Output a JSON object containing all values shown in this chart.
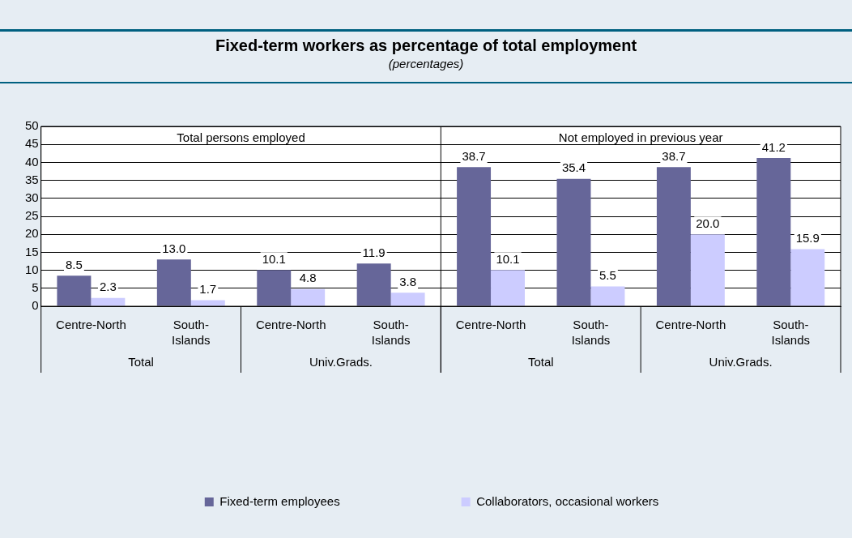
{
  "chart_data": {
    "type": "bar",
    "title": "Fixed-term workers as percentage of total employment",
    "subtitle": "(percentages)",
    "categories": [
      "Centre-North",
      "South-Islands",
      "Centre-North",
      "South-Islands",
      "Centre-North",
      "South-Islands",
      "Centre-North",
      "South-Islands"
    ],
    "series": [
      {
        "name": "Fixed-term employees",
        "color": "#666699",
        "values": [
          8.5,
          13.0,
          10.1,
          11.9,
          38.7,
          35.4,
          38.7,
          41.2
        ],
        "value_labels": [
          "8.5",
          "13.0",
          "10.1",
          "11.9",
          "38.7",
          "35.4",
          "38.7",
          "41.2"
        ]
      },
      {
        "name": "Collaborators, occasional workers",
        "color": "#ccccff",
        "values": [
          2.3,
          1.7,
          4.8,
          3.8,
          10.1,
          5.5,
          20.0,
          15.9
        ],
        "value_labels": [
          "2.3",
          "1.7",
          "4.8",
          "3.8",
          "10.1",
          "5.5",
          "20.0",
          "15.9"
        ]
      }
    ],
    "ylim": [
      0,
      50
    ],
    "yticks": [
      0,
      5,
      10,
      15,
      20,
      25,
      30,
      35,
      40,
      45,
      50
    ],
    "grid": "y",
    "legend": "bottom",
    "annotations": [
      "Total persons employed",
      "Not employed in previous year",
      "Total",
      "Univ.Grads.",
      "Total",
      "Univ.Grads."
    ]
  }
}
